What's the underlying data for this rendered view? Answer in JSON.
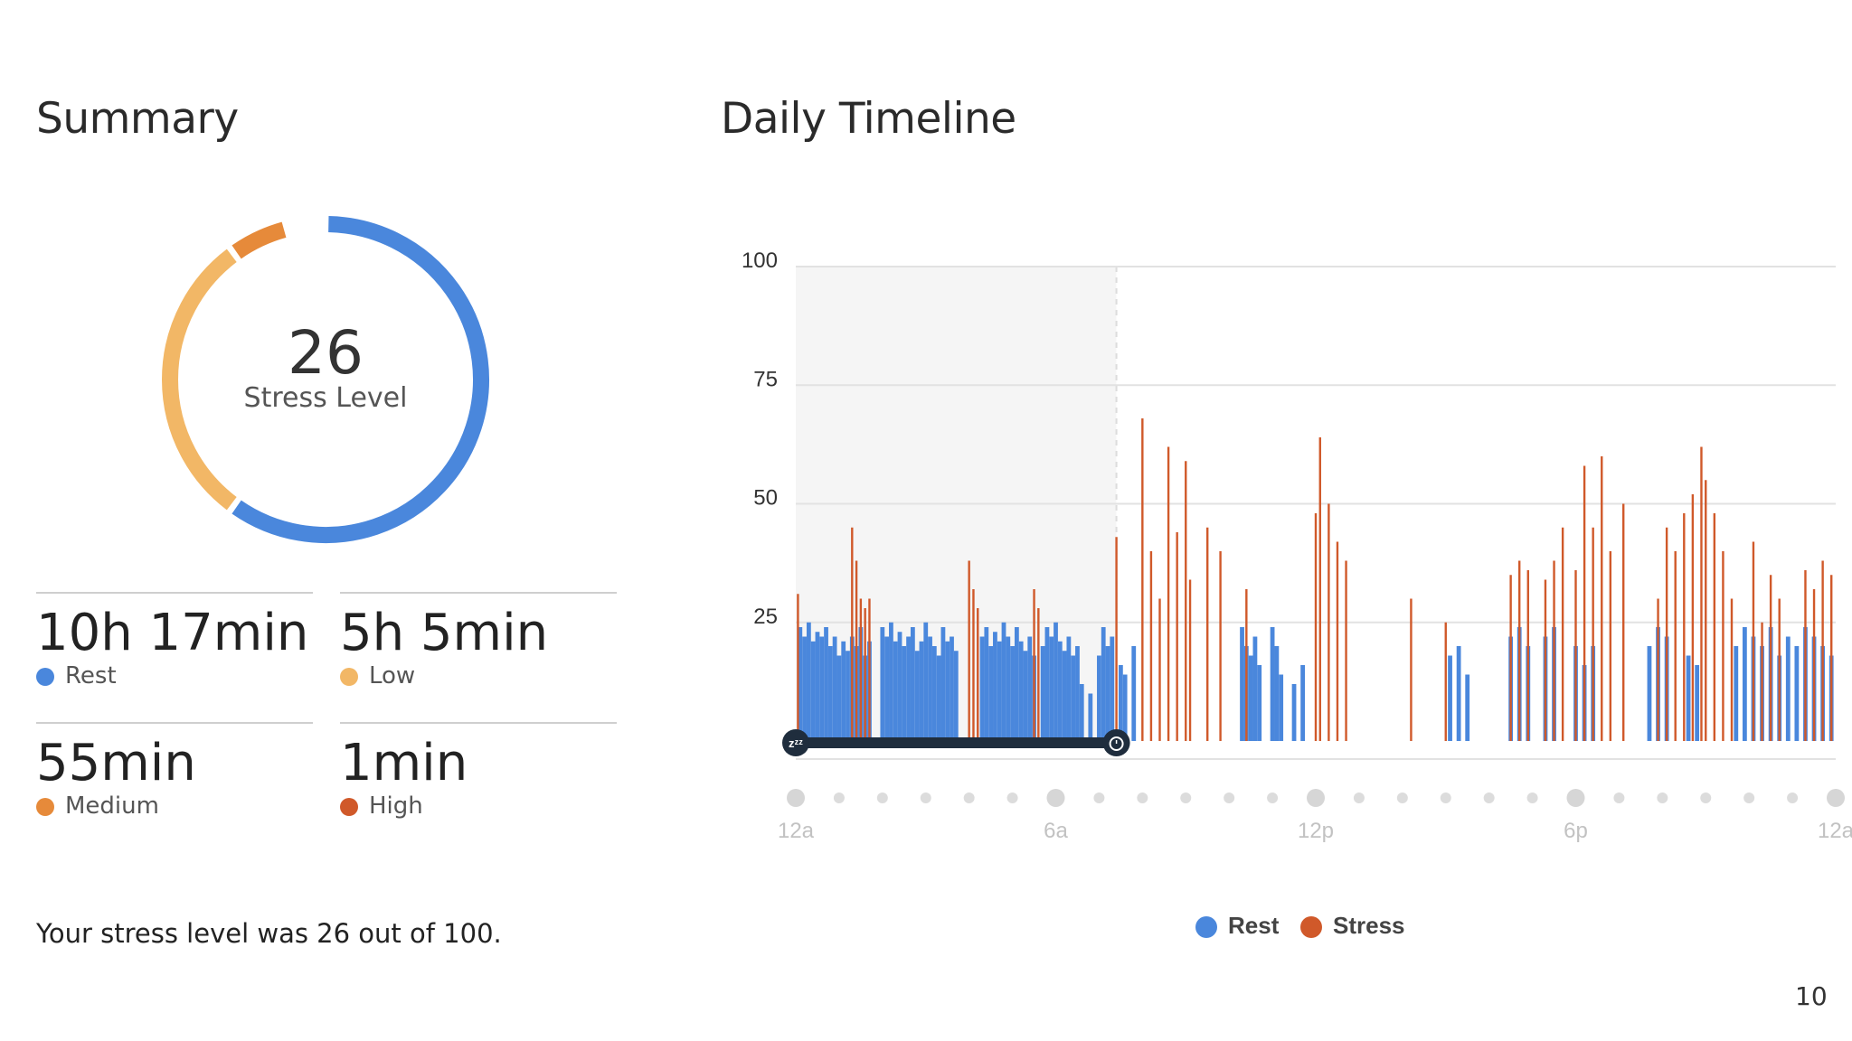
{
  "summary": {
    "title": "Summary",
    "stress_value": "26",
    "stress_label": "Stress Level",
    "ring_segments": [
      {
        "name": "Rest",
        "fraction": 0.6,
        "color": "#4a87dc"
      },
      {
        "name": "Low",
        "fraction": 0.3,
        "color": "#f2b766"
      },
      {
        "name": "Medium",
        "fraction": 0.06,
        "color": "#e68a3a"
      }
    ],
    "stats": [
      {
        "value": "10h 17min",
        "label": "Rest",
        "color": "#4a87dc"
      },
      {
        "value": "5h 5min",
        "label": "Low",
        "color": "#f2b766"
      },
      {
        "value": "55min",
        "label": "Medium",
        "color": "#e68a3a"
      },
      {
        "value": "1min",
        "label": "High",
        "color": "#d0592a"
      }
    ],
    "footer_text": "Your stress level was 26 out of 100."
  },
  "timeline": {
    "title": "Daily Timeline",
    "sleep_icon": "zzz-icon",
    "wake_icon": "alarm-clock-icon"
  },
  "chart_data": {
    "type": "bar",
    "title": "Daily Timeline",
    "xlabel": "",
    "ylabel": "",
    "ylim": [
      0,
      100
    ],
    "y_ticks": [
      25,
      50,
      75,
      100
    ],
    "x_ticks": [
      "12a",
      "6a",
      "12p",
      "6p",
      "12a"
    ],
    "x_range_hours": [
      0,
      24
    ],
    "sleep_period_hours": [
      0,
      7.4
    ],
    "grid": true,
    "legend_position": "bottom",
    "colors": {
      "Rest": "#4a87dc",
      "Stress": "#d0592a"
    },
    "series": [
      {
        "name": "Rest",
        "points": [
          [
            0.1,
            24
          ],
          [
            0.2,
            22
          ],
          [
            0.3,
            25
          ],
          [
            0.4,
            21
          ],
          [
            0.5,
            23
          ],
          [
            0.6,
            22
          ],
          [
            0.7,
            24
          ],
          [
            0.8,
            20
          ],
          [
            0.9,
            22
          ],
          [
            1.0,
            18
          ],
          [
            1.1,
            21
          ],
          [
            1.2,
            19
          ],
          [
            1.3,
            22
          ],
          [
            1.4,
            20
          ],
          [
            1.5,
            24
          ],
          [
            1.6,
            18
          ],
          [
            1.7,
            21
          ],
          [
            2.0,
            24
          ],
          [
            2.1,
            22
          ],
          [
            2.2,
            25
          ],
          [
            2.3,
            21
          ],
          [
            2.4,
            23
          ],
          [
            2.5,
            20
          ],
          [
            2.6,
            22
          ],
          [
            2.7,
            24
          ],
          [
            2.8,
            19
          ],
          [
            2.9,
            21
          ],
          [
            3.0,
            25
          ],
          [
            3.1,
            22
          ],
          [
            3.2,
            20
          ],
          [
            3.3,
            18
          ],
          [
            3.4,
            24
          ],
          [
            3.5,
            21
          ],
          [
            3.6,
            22
          ],
          [
            3.7,
            19
          ],
          [
            4.3,
            22
          ],
          [
            4.4,
            24
          ],
          [
            4.5,
            20
          ],
          [
            4.6,
            23
          ],
          [
            4.7,
            21
          ],
          [
            4.8,
            25
          ],
          [
            4.9,
            22
          ],
          [
            5.0,
            20
          ],
          [
            5.1,
            24
          ],
          [
            5.2,
            21
          ],
          [
            5.3,
            19
          ],
          [
            5.4,
            22
          ],
          [
            5.5,
            18
          ],
          [
            5.7,
            20
          ],
          [
            5.8,
            24
          ],
          [
            5.9,
            22
          ],
          [
            6.0,
            25
          ],
          [
            6.1,
            21
          ],
          [
            6.2,
            19
          ],
          [
            6.3,
            22
          ],
          [
            6.4,
            18
          ],
          [
            6.5,
            20
          ],
          [
            6.6,
            12
          ],
          [
            6.8,
            10
          ],
          [
            7.0,
            18
          ],
          [
            7.1,
            24
          ],
          [
            7.2,
            20
          ],
          [
            7.3,
            22
          ],
          [
            7.5,
            16
          ],
          [
            7.6,
            14
          ],
          [
            7.8,
            20
          ],
          [
            10.3,
            24
          ],
          [
            10.4,
            20
          ],
          [
            10.5,
            18
          ],
          [
            10.6,
            22
          ],
          [
            10.7,
            16
          ],
          [
            11.0,
            24
          ],
          [
            11.1,
            20
          ],
          [
            11.2,
            14
          ],
          [
            11.5,
            12
          ],
          [
            11.7,
            16
          ],
          [
            15.1,
            18
          ],
          [
            15.3,
            20
          ],
          [
            15.5,
            14
          ],
          [
            16.5,
            22
          ],
          [
            16.7,
            24
          ],
          [
            16.9,
            20
          ],
          [
            17.3,
            22
          ],
          [
            17.5,
            24
          ],
          [
            18.0,
            20
          ],
          [
            18.2,
            16
          ],
          [
            18.4,
            20
          ],
          [
            19.7,
            20
          ],
          [
            19.9,
            24
          ],
          [
            20.1,
            22
          ],
          [
            20.6,
            18
          ],
          [
            20.8,
            16
          ],
          [
            21.7,
            20
          ],
          [
            21.9,
            24
          ],
          [
            22.1,
            22
          ],
          [
            22.3,
            20
          ],
          [
            22.5,
            24
          ],
          [
            22.7,
            18
          ],
          [
            22.9,
            22
          ],
          [
            23.1,
            20
          ],
          [
            23.3,
            24
          ],
          [
            23.5,
            22
          ],
          [
            23.7,
            20
          ],
          [
            23.9,
            18
          ]
        ]
      },
      {
        "name": "Stress",
        "points": [
          [
            0.05,
            31
          ],
          [
            1.3,
            45
          ],
          [
            1.4,
            38
          ],
          [
            1.5,
            30
          ],
          [
            1.6,
            28
          ],
          [
            1.7,
            30
          ],
          [
            4.0,
            38
          ],
          [
            4.1,
            32
          ],
          [
            4.2,
            28
          ],
          [
            5.5,
            32
          ],
          [
            5.6,
            28
          ],
          [
            7.4,
            43
          ],
          [
            8.0,
            68
          ],
          [
            8.2,
            40
          ],
          [
            8.4,
            30
          ],
          [
            8.6,
            62
          ],
          [
            8.8,
            44
          ],
          [
            9.0,
            59
          ],
          [
            9.1,
            34
          ],
          [
            9.5,
            45
          ],
          [
            9.8,
            40
          ],
          [
            10.4,
            32
          ],
          [
            12.0,
            48
          ],
          [
            12.1,
            64
          ],
          [
            12.3,
            50
          ],
          [
            12.5,
            42
          ],
          [
            12.7,
            38
          ],
          [
            14.2,
            30
          ],
          [
            15.0,
            25
          ],
          [
            16.5,
            35
          ],
          [
            16.7,
            38
          ],
          [
            16.9,
            36
          ],
          [
            17.3,
            34
          ],
          [
            17.5,
            38
          ],
          [
            17.7,
            45
          ],
          [
            18.0,
            36
          ],
          [
            18.2,
            58
          ],
          [
            18.4,
            45
          ],
          [
            18.6,
            60
          ],
          [
            18.8,
            40
          ],
          [
            19.1,
            50
          ],
          [
            19.9,
            30
          ],
          [
            20.1,
            45
          ],
          [
            20.3,
            40
          ],
          [
            20.5,
            48
          ],
          [
            20.7,
            52
          ],
          [
            20.9,
            62
          ],
          [
            21.0,
            55
          ],
          [
            21.2,
            48
          ],
          [
            21.4,
            40
          ],
          [
            21.6,
            30
          ],
          [
            22.1,
            42
          ],
          [
            22.3,
            25
          ],
          [
            22.5,
            35
          ],
          [
            22.7,
            30
          ],
          [
            23.3,
            36
          ],
          [
            23.5,
            32
          ],
          [
            23.7,
            38
          ],
          [
            23.9,
            35
          ]
        ]
      }
    ],
    "legend": [
      "Rest",
      "Stress"
    ]
  }
}
